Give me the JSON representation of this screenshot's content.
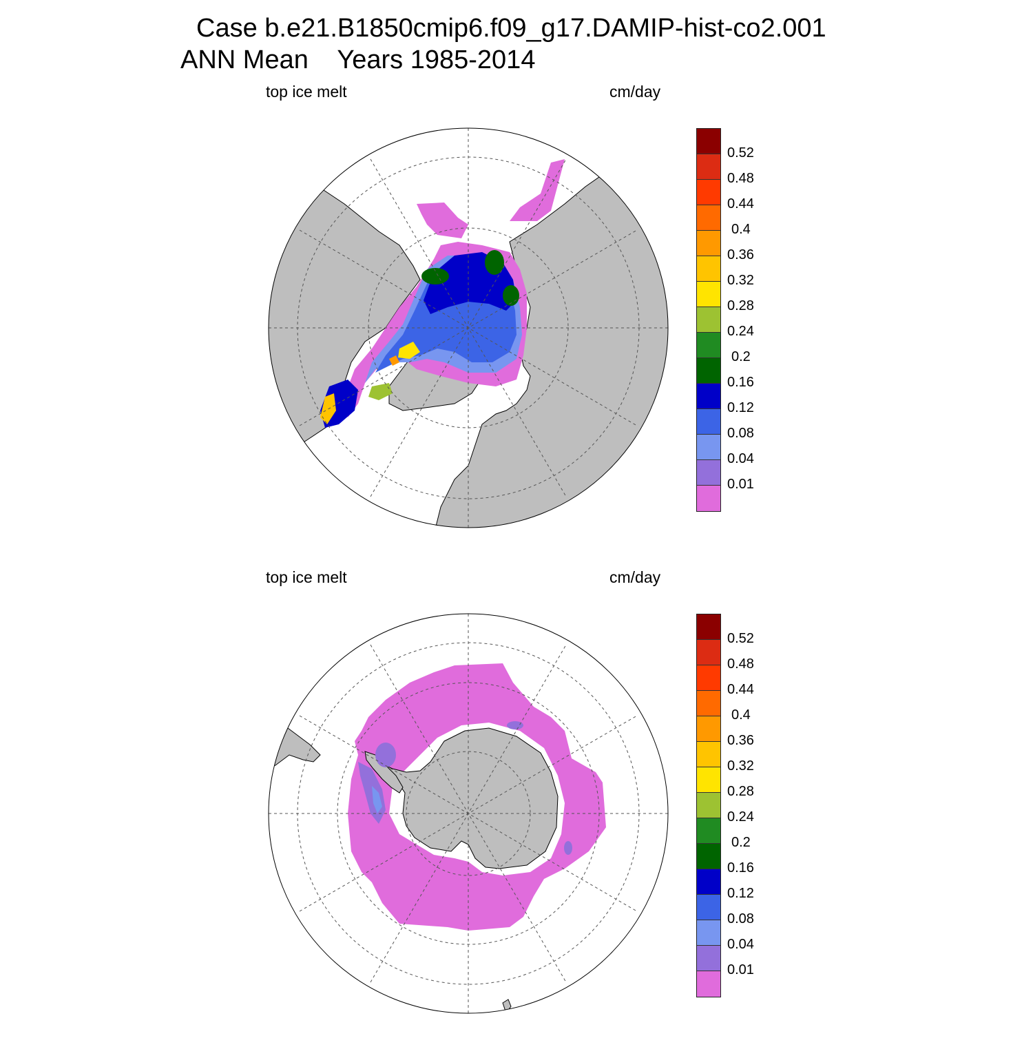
{
  "figure": {
    "title_line1": "Case b.e21.B1850cmip6.f09_g17.DAMIP-hist-co2.001",
    "title_line2": "ANN Mean    Years 1985-2014"
  },
  "panels": [
    {
      "hemisphere": "north",
      "variable": "top ice melt",
      "units": "cm/day"
    },
    {
      "hemisphere": "south",
      "variable": "top ice melt",
      "units": "cm/day"
    }
  ],
  "colorbar": {
    "colors": [
      "#8b0000",
      "#dc2c13",
      "#ff3a00",
      "#ff6a00",
      "#ff9900",
      "#ffc400",
      "#ffe400",
      "#9dc232",
      "#208b22",
      "#006400",
      "#0000c8",
      "#3c64e6",
      "#7896f0",
      "#9370db",
      "#e06cdc"
    ],
    "labels": [
      "0.52",
      "0.48",
      "0.44",
      "0.4",
      "0.36",
      "0.32",
      "0.28",
      "0.24",
      "0.2",
      "0.16",
      "0.12",
      "0.08",
      "0.04",
      "0.01"
    ]
  },
  "colors": {
    "land": "#bebebe",
    "ocean": "#ffffff",
    "grid": "#555555"
  }
}
